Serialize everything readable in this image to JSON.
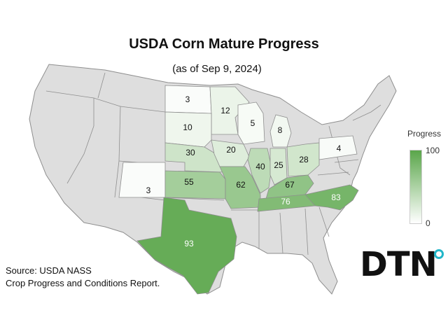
{
  "title": "USDA Corn Mature Progress",
  "subtitle": "(as of Sep 9, 2024)",
  "legend": {
    "title": "Progress",
    "max": "100",
    "min": "0",
    "color_low": "#ffffff",
    "color_high": "#5aa64a"
  },
  "source_lines": [
    "Source: USDA NASS",
    "Crop Progress and Conditions Report."
  ],
  "logo": "DTN",
  "colors": {
    "nodata": "#dedede",
    "border": "#8e8e8e"
  },
  "states": [
    {
      "code": "ND",
      "value": 3
    },
    {
      "code": "MN",
      "value": 12
    },
    {
      "code": "SD",
      "value": 10
    },
    {
      "code": "WI",
      "value": 5
    },
    {
      "code": "MI",
      "value": 8
    },
    {
      "code": "NE",
      "value": 30
    },
    {
      "code": "IA",
      "value": 20
    },
    {
      "code": "IL",
      "value": 40
    },
    {
      "code": "IN",
      "value": 25
    },
    {
      "code": "OH",
      "value": 28
    },
    {
      "code": "PA",
      "value": 4
    },
    {
      "code": "CO",
      "value": 3
    },
    {
      "code": "KS",
      "value": 55
    },
    {
      "code": "MO",
      "value": 62
    },
    {
      "code": "KY",
      "value": 67
    },
    {
      "code": "TN",
      "value": 76
    },
    {
      "code": "NC",
      "value": 83
    },
    {
      "code": "TX",
      "value": 93
    }
  ]
}
